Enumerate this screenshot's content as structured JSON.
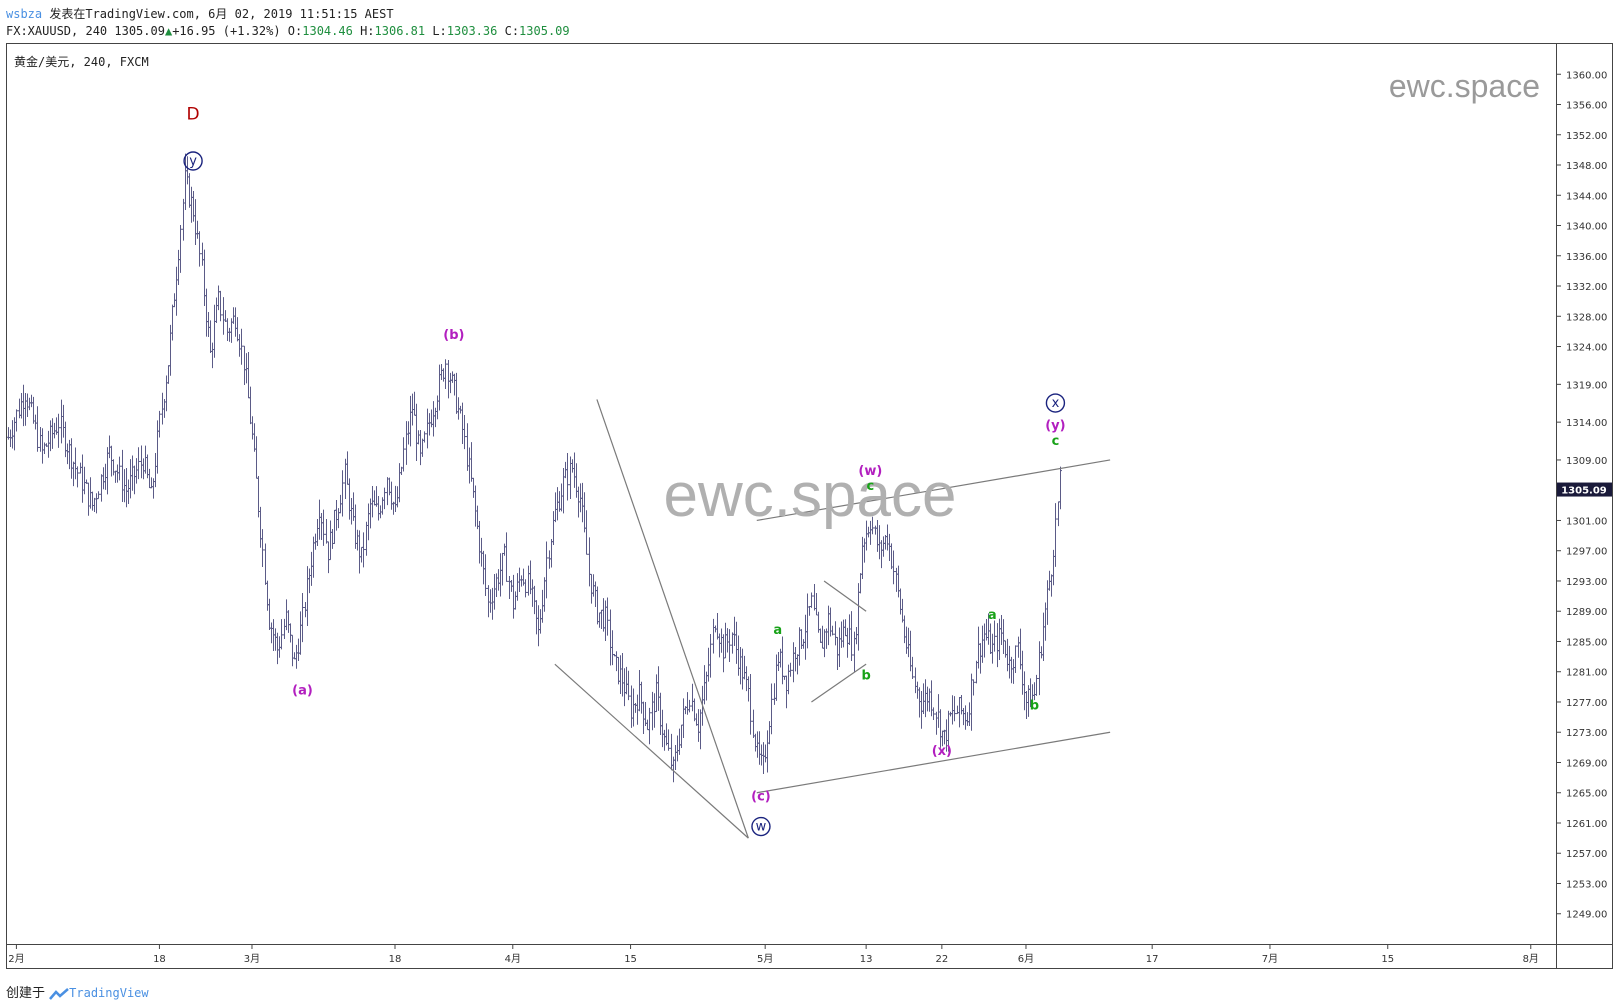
{
  "header": {
    "user": "wsbza",
    "published_text": "发表在TradingView.com, 6月 02, 2019 11:51:15 AEST",
    "symbol_line": "FX:XAUUSD, 240 1305.09",
    "change": "+16.95 (+1.32%)",
    "open_label": "O:",
    "open_value": "1304.46",
    "high_label": "H:",
    "high_value": "1306.81",
    "low_label": "L:",
    "low_value": "1303.36",
    "close_label": "C:",
    "close_value": "1305.09"
  },
  "footer": {
    "created_label": "创建于",
    "brand": "TradingView"
  },
  "colors": {
    "bars": "#5b5b87",
    "purple": "#b21fbf",
    "green": "#18a218",
    "red": "#b00000",
    "navy": "#1a237e",
    "line": "#7a7a7a",
    "watermark": "#b0b0b0",
    "price_tag_bg": "#1a1a3a"
  },
  "chart_data": {
    "type": "ohlc",
    "title": "黄金/美元, 240, FXCM",
    "watermark": "ewc.space",
    "current_price_label": "1305.09",
    "ylim": [
      1245.0,
      1364.0
    ],
    "y_ticks": [
      "1360.00",
      "1356.00",
      "1352.00",
      "1348.00",
      "1344.00",
      "1340.00",
      "1336.00",
      "1332.00",
      "1328.00",
      "1324.00",
      "1319.00",
      "1314.00",
      "1309.00",
      "1305.09",
      "1301.00",
      "1297.00",
      "1293.00",
      "1289.00",
      "1285.00",
      "1281.00",
      "1277.00",
      "1273.00",
      "1269.00",
      "1265.00",
      "1261.00",
      "1257.00",
      "1253.00",
      "1249.00"
    ],
    "x_ticks": [
      {
        "label": "2月",
        "t": 0
      },
      {
        "label": "18",
        "t": 17
      },
      {
        "label": "3月",
        "t": 28
      },
      {
        "label": "18",
        "t": 45
      },
      {
        "label": "4月",
        "t": 59
      },
      {
        "label": "15",
        "t": 73
      },
      {
        "label": "5月",
        "t": 89
      },
      {
        "label": "13",
        "t": 101
      },
      {
        "label": "22",
        "t": 110
      },
      {
        "label": "6月",
        "t": 120
      },
      {
        "label": "17",
        "t": 135
      },
      {
        "label": "7月",
        "t": 149
      },
      {
        "label": "15",
        "t": 163
      },
      {
        "label": "8月",
        "t": 180
      }
    ],
    "x_range_days": [
      -1,
      183
    ],
    "price_path": [
      [
        -1,
        1312
      ],
      [
        1,
        1318
      ],
      [
        3,
        1310
      ],
      [
        5,
        1314
      ],
      [
        7,
        1308
      ],
      [
        9,
        1303
      ],
      [
        11,
        1310
      ],
      [
        13,
        1305
      ],
      [
        15,
        1309
      ],
      [
        16,
        1304
      ],
      [
        17,
        1314
      ],
      [
        18,
        1322
      ],
      [
        19,
        1334
      ],
      [
        20,
        1346
      ],
      [
        21,
        1342
      ],
      [
        22,
        1334
      ],
      [
        23,
        1323
      ],
      [
        24,
        1330
      ],
      [
        25,
        1326
      ],
      [
        26,
        1328
      ],
      [
        27,
        1322
      ],
      [
        28,
        1312
      ],
      [
        29,
        1300
      ],
      [
        30,
        1288
      ],
      [
        31,
        1284
      ],
      [
        32,
        1288
      ],
      [
        33,
        1282
      ],
      [
        34,
        1288
      ],
      [
        35,
        1296
      ],
      [
        36,
        1303
      ],
      [
        37,
        1297
      ],
      [
        38,
        1302
      ],
      [
        39,
        1307
      ],
      [
        40,
        1300
      ],
      [
        41,
        1296
      ],
      [
        42,
        1303
      ],
      [
        43,
        1302
      ],
      [
        44,
        1307
      ],
      [
        45,
        1302
      ],
      [
        46,
        1310
      ],
      [
        47,
        1316
      ],
      [
        48,
        1309
      ],
      [
        49,
        1314
      ],
      [
        50,
        1318
      ],
      [
        51,
        1322
      ],
      [
        52,
        1318
      ],
      [
        53,
        1313
      ],
      [
        54,
        1306
      ],
      [
        55,
        1298
      ],
      [
        56,
        1290
      ],
      [
        57,
        1293
      ],
      [
        58,
        1296
      ],
      [
        59,
        1290
      ],
      [
        60,
        1294
      ],
      [
        61,
        1292
      ],
      [
        62,
        1286
      ],
      [
        63,
        1296
      ],
      [
        64,
        1302
      ],
      [
        65,
        1306
      ],
      [
        66,
        1308
      ],
      [
        67,
        1304
      ],
      [
        68,
        1294
      ],
      [
        69,
        1289
      ],
      [
        70,
        1288
      ],
      [
        71,
        1282
      ],
      [
        72,
        1280
      ],
      [
        73,
        1276
      ],
      [
        74,
        1278
      ],
      [
        75,
        1274
      ],
      [
        76,
        1278
      ],
      [
        77,
        1272
      ],
      [
        78,
        1268
      ],
      [
        79,
        1274
      ],
      [
        80,
        1278
      ],
      [
        81,
        1274
      ],
      [
        82,
        1280
      ],
      [
        83,
        1288
      ],
      [
        84,
        1284
      ],
      [
        85,
        1286
      ],
      [
        86,
        1282
      ],
      [
        87,
        1278
      ],
      [
        88,
        1270
      ],
      [
        88.7,
        1268
      ],
      [
        89.5,
        1275
      ],
      [
        90.5,
        1283
      ],
      [
        91.5,
        1280
      ],
      [
        92.5,
        1284
      ],
      [
        93.5,
        1286
      ],
      [
        94.5,
        1290
      ],
      [
        95.5,
        1284
      ],
      [
        96.5,
        1288
      ],
      [
        97.5,
        1284
      ],
      [
        98.5,
        1287
      ],
      [
        99.5,
        1284
      ],
      [
        100.5,
        1298
      ],
      [
        101.5,
        1301
      ],
      [
        102.5,
        1297
      ],
      [
        103.5,
        1299
      ],
      [
        104.5,
        1293
      ],
      [
        105.5,
        1286
      ],
      [
        106.5,
        1280
      ],
      [
        107.5,
        1277
      ],
      [
        108.5,
        1278
      ],
      [
        109.5,
        1275
      ],
      [
        110.2,
        1272
      ],
      [
        111,
        1275
      ],
      [
        112,
        1276
      ],
      [
        113,
        1275
      ],
      [
        114,
        1283
      ],
      [
        115,
        1286
      ],
      [
        116,
        1284
      ],
      [
        117,
        1286
      ],
      [
        118,
        1282
      ],
      [
        119,
        1284
      ],
      [
        120,
        1277
      ],
      [
        121,
        1278
      ],
      [
        122,
        1287
      ],
      [
        123,
        1295
      ],
      [
        124,
        1306
      ]
    ],
    "trend_lines": [
      {
        "from": [
          69,
          1317
        ],
        "to": [
          87,
          1259
        ]
      },
      {
        "from": [
          64,
          1282
        ],
        "to": [
          87,
          1259
        ]
      },
      {
        "from": [
          88,
          1301
        ],
        "to": [
          130,
          1309
        ]
      },
      {
        "from": [
          88,
          1265
        ],
        "to": [
          130,
          1273
        ]
      },
      {
        "from": [
          96,
          1293
        ],
        "to": [
          101,
          1289
        ]
      },
      {
        "from": [
          94.5,
          1277
        ],
        "to": [
          101,
          1282
        ]
      }
    ],
    "wave_labels": [
      {
        "id": "D",
        "text": "D",
        "t": 21,
        "p": 1354,
        "color": "red"
      },
      {
        "id": "y-circle",
        "text": "y",
        "t": 21,
        "p": 1348,
        "color": "navy",
        "circle": true
      },
      {
        "id": "a-paren",
        "text": "(a)",
        "t": 34,
        "p": 1278,
        "color": "purple"
      },
      {
        "id": "b-paren",
        "text": "(b)",
        "t": 52,
        "p": 1325,
        "color": "purple"
      },
      {
        "id": "c-paren",
        "text": "(c)",
        "t": 88.5,
        "p": 1264,
        "color": "purple"
      },
      {
        "id": "w-circle",
        "text": "w",
        "t": 88.5,
        "p": 1260,
        "color": "navy",
        "circle": true
      },
      {
        "id": "a-green-1",
        "text": "a",
        "t": 90.5,
        "p": 1286,
        "color": "green"
      },
      {
        "id": "b-green-1",
        "text": "b",
        "t": 101,
        "p": 1280,
        "color": "green"
      },
      {
        "id": "w-paren",
        "text": "(w)",
        "t": 101.5,
        "p": 1307,
        "color": "purple"
      },
      {
        "id": "c-green-1",
        "text": "c",
        "t": 101.5,
        "p": 1305,
        "color": "green"
      },
      {
        "id": "x-paren",
        "text": "(x)",
        "t": 110,
        "p": 1270,
        "color": "purple"
      },
      {
        "id": "a-green-2",
        "text": "a",
        "t": 116,
        "p": 1288,
        "color": "green"
      },
      {
        "id": "b-green-2",
        "text": "b",
        "t": 121,
        "p": 1276,
        "color": "green"
      },
      {
        "id": "x-circle",
        "text": "x",
        "t": 123.5,
        "p": 1316,
        "color": "navy",
        "circle": true
      },
      {
        "id": "y-paren",
        "text": "(y)",
        "t": 123.5,
        "p": 1313,
        "color": "purple"
      },
      {
        "id": "c-green-2",
        "text": "c",
        "t": 123.5,
        "p": 1311,
        "color": "green"
      }
    ]
  }
}
